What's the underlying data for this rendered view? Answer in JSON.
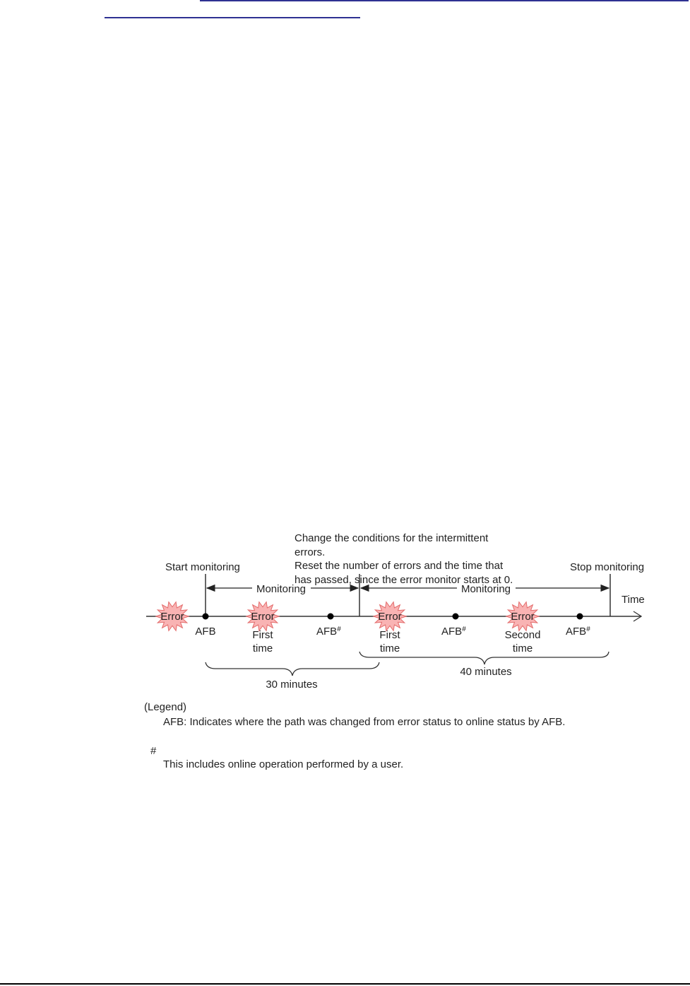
{
  "colors": {
    "link": "#2e3192",
    "error_fill": "#f9b3b3",
    "error_stroke": "#e36a6a",
    "line": "#333333"
  },
  "diagram": {
    "start_monitoring": "Start monitoring",
    "stop_monitoring": "Stop monitoring",
    "time_label": "Time",
    "change_note": [
      "Change the conditions for the intermittent",
      "errors.",
      "Reset the number of errors and the time that",
      "has passed, since the error monitor starts at 0."
    ],
    "monitoring_1": "Monitoring",
    "monitoring_2": "Monitoring",
    "error_label": "Error",
    "afb": "AFB",
    "afb_hash": "AFB",
    "hash": "#",
    "first": "First",
    "second": "Second",
    "time": "time",
    "duration_1": "30 minutes",
    "duration_2": "40 minutes"
  },
  "legend": {
    "title": "(Legend)",
    "afb_desc": "AFB: Indicates where the path was changed from error status to online status by AFB.",
    "hash": "#",
    "hash_desc": "This includes online operation performed by a user."
  }
}
